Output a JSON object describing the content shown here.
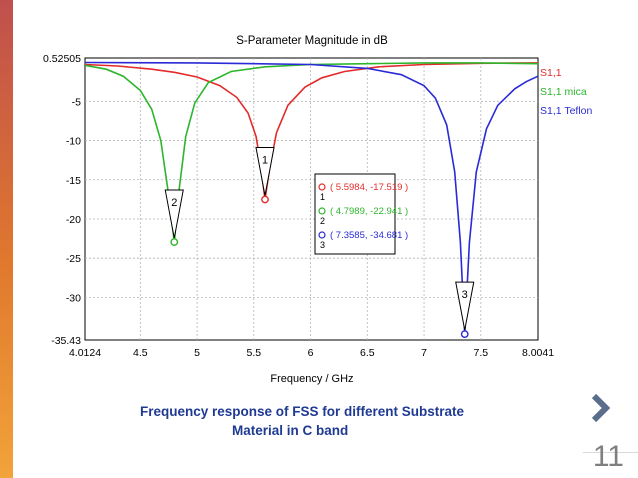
{
  "slide": {
    "caption_line1": "Frequency response of FSS for different Substrate",
    "caption_line2": "Material in C band",
    "page_number": "11",
    "accent_color": "#e0782e",
    "caption_color": "#1f3a93"
  },
  "chart_data": {
    "type": "line",
    "title": "S-Parameter Magnitude in dB",
    "xlabel": "Frequency / GHz",
    "ylabel": "",
    "xlim": [
      4.0124,
      8.0041
    ],
    "ylim": [
      -35.43,
      0.52505
    ],
    "xticks": [
      4.0124,
      4.5,
      5,
      5.5,
      6,
      6.5,
      7,
      7.5,
      8.0041
    ],
    "xtick_labels": [
      "4.0124",
      "4.5",
      "5",
      "5.5",
      "6",
      "6.5",
      "7",
      "7.5",
      "8.0041"
    ],
    "yticks": [
      0.52505,
      -5,
      -10,
      -15,
      -20,
      -25,
      -30,
      -35.43
    ],
    "ytick_labels": [
      "0.52505",
      "-5",
      "-10",
      "-15",
      "-20",
      "-25",
      "-30",
      "-35.43"
    ],
    "grid": true,
    "legend_position": "right",
    "series": [
      {
        "name": "S1,1",
        "color": "#e32b2b",
        "x": [
          4.0124,
          4.3,
          4.6,
          4.8,
          5.0,
          5.2,
          5.35,
          5.45,
          5.52,
          5.56,
          5.5984,
          5.64,
          5.7,
          5.8,
          5.95,
          6.1,
          6.3,
          6.6,
          7.0,
          7.5,
          8.0041
        ],
        "y": [
          -0.3,
          -0.5,
          -0.9,
          -1.3,
          -1.9,
          -3.0,
          -4.5,
          -6.5,
          -9.5,
          -13.0,
          -17.519,
          -13.5,
          -9.0,
          -5.5,
          -3.2,
          -2.0,
          -1.2,
          -0.6,
          -0.3,
          -0.15,
          -0.1
        ]
      },
      {
        "name": "S1,1 mica",
        "color": "#2db52d",
        "x": [
          4.0124,
          4.2,
          4.35,
          4.5,
          4.6,
          4.68,
          4.74,
          4.7989,
          4.84,
          4.9,
          4.98,
          5.1,
          5.3,
          5.6,
          6.0,
          6.5,
          7.0,
          7.5,
          8.0041
        ],
        "y": [
          -0.4,
          -0.9,
          -1.8,
          -3.6,
          -6.0,
          -10.0,
          -16.0,
          -22.941,
          -16.5,
          -9.5,
          -5.2,
          -2.6,
          -1.2,
          -0.6,
          -0.3,
          -0.2,
          -0.1,
          -0.1,
          -0.2
        ],
        "marker_label": "( 4.7989, -22.941 )"
      },
      {
        "name": "S1,1 Teflon",
        "color": "#2a2ad6",
        "x": [
          4.0124,
          5.0,
          6.0,
          6.5,
          6.8,
          7.0,
          7.1,
          7.2,
          7.27,
          7.32,
          7.3585,
          7.4,
          7.46,
          7.55,
          7.65,
          7.8,
          7.9,
          8.0041
        ],
        "y": [
          -0.05,
          -0.1,
          -0.3,
          -0.8,
          -1.6,
          -3.0,
          -4.6,
          -8.0,
          -14.0,
          -23.0,
          -34.681,
          -23.0,
          -14.0,
          -8.5,
          -5.5,
          -3.4,
          -2.5,
          -1.8
        ]
      }
    ],
    "markers": [
      {
        "id": "1",
        "x": 5.5984,
        "y": -17.519,
        "label": "( 5.5984, -17.519 )",
        "color": "#e32b2b"
      },
      {
        "id": "2",
        "x": 4.7989,
        "y": -22.941,
        "label": "( 4.7989, -22.941 )",
        "color": "#2db52d"
      },
      {
        "id": "3",
        "x": 7.3585,
        "y": -34.681,
        "label": "( 7.3585, -34.681 )",
        "color": "#2a2ad6"
      }
    ]
  }
}
